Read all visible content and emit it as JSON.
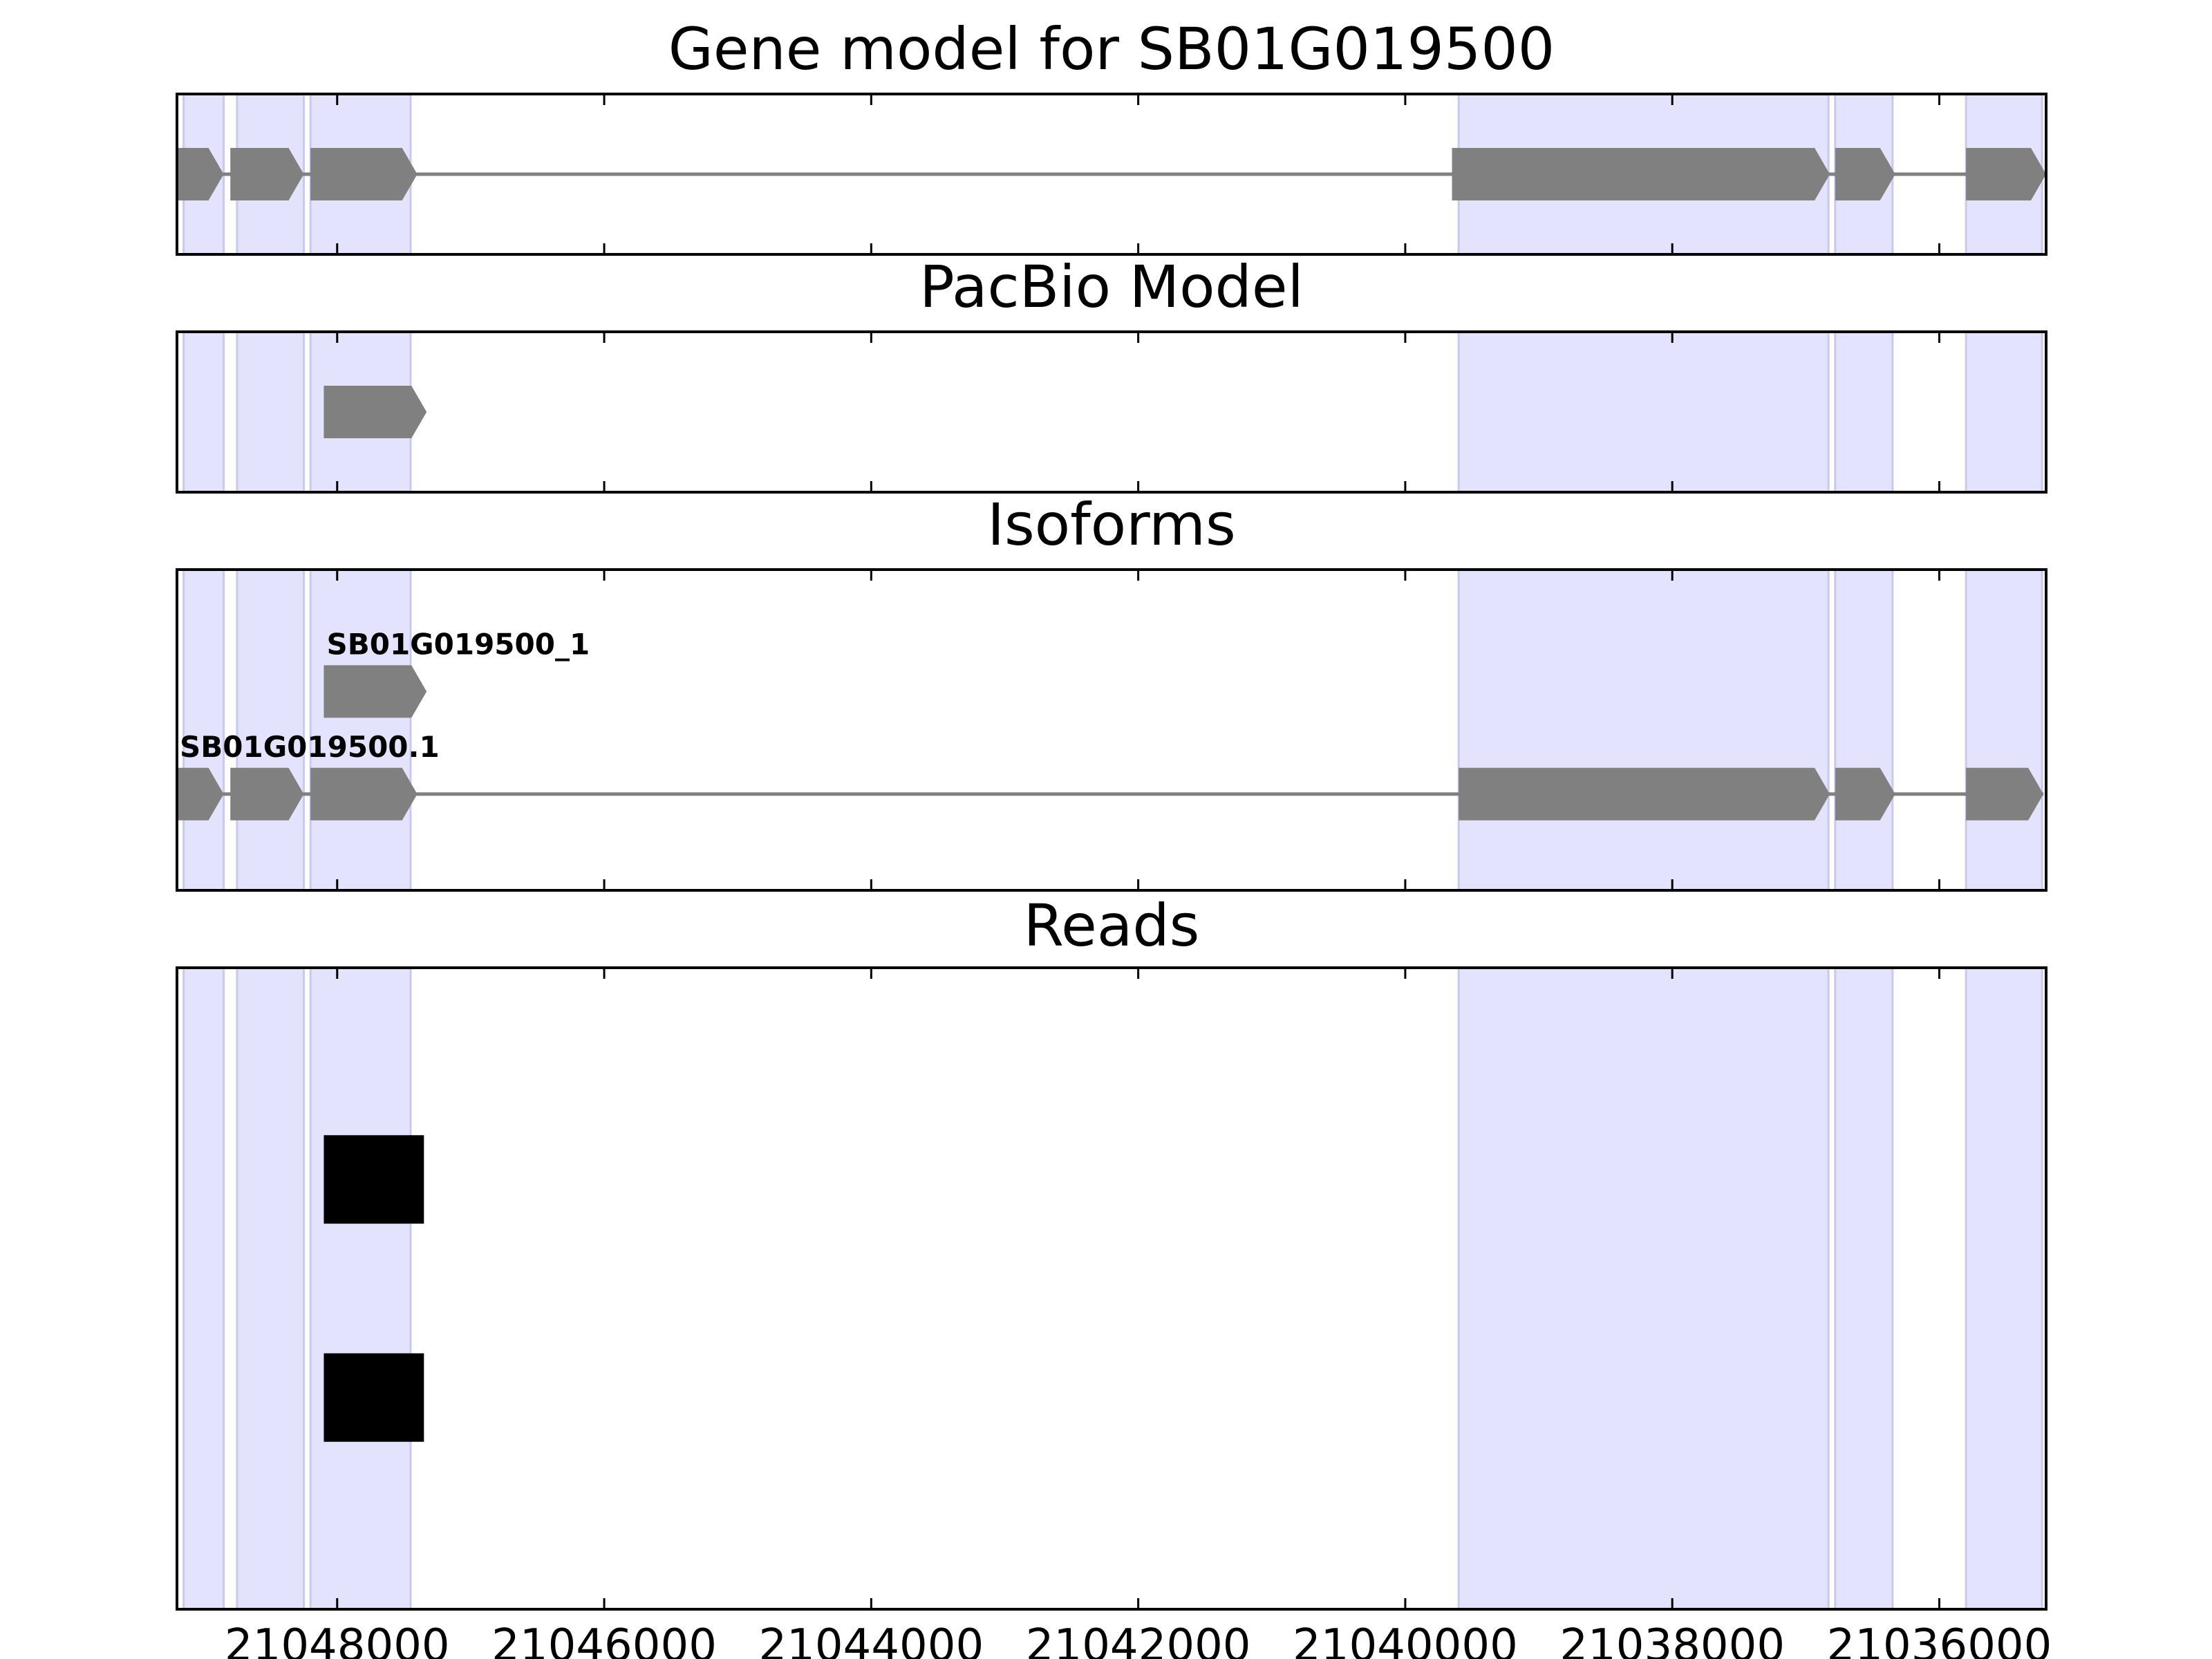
{
  "chart_data": {
    "type": "gene_model",
    "x_axis": {
      "reversed": true,
      "xlim": [
        21049200,
        21035200
      ],
      "ticks": [
        21048000,
        21046000,
        21044000,
        21042000,
        21040000,
        21038000,
        21036000
      ],
      "tick_labels": [
        "21048000",
        "21046000",
        "21044000",
        "21042000",
        "21040000",
        "21038000",
        "21036000"
      ]
    },
    "highlight_color": "#e3e3fd",
    "feature_color": "#808080",
    "read_color": "#000000",
    "exon_regions": [
      {
        "start": 21049150,
        "end": 21048850
      },
      {
        "start": 21048750,
        "end": 21048250
      },
      {
        "start": 21048200,
        "end": 21047450
      },
      {
        "start": 21039600,
        "end": 21036830
      },
      {
        "start": 21036780,
        "end": 21036350
      },
      {
        "start": 21035800,
        "end": 21035230
      }
    ],
    "panels": [
      {
        "title": "Gene model for SB01G019500",
        "tracks": [
          {
            "label": "",
            "row": 0.5,
            "exons": [
              {
                "start": 21049200,
                "end": 21048850
              },
              {
                "start": 21048800,
                "end": 21048250
              },
              {
                "start": 21048200,
                "end": 21047400
              },
              {
                "start": 21039650,
                "end": 21036820
              },
              {
                "start": 21036780,
                "end": 21036330
              },
              {
                "start": 21035800,
                "end": 21035200
              }
            ]
          }
        ]
      },
      {
        "title": "PacBio Model",
        "tracks": [
          {
            "label": "",
            "row": 0.5,
            "exons": [
              {
                "start": 21048100,
                "end": 21047330
              }
            ]
          }
        ]
      },
      {
        "title": "Isoforms",
        "tracks": [
          {
            "label": "SB01G019500_1",
            "row": 0.62,
            "exons": [
              {
                "start": 21048100,
                "end": 21047330
              }
            ]
          },
          {
            "label": "SB01G019500.1",
            "row": 0.3,
            "exons": [
              {
                "start": 21049200,
                "end": 21048850
              },
              {
                "start": 21048800,
                "end": 21048250
              },
              {
                "start": 21048200,
                "end": 21047400
              },
              {
                "start": 21039600,
                "end": 21036820
              },
              {
                "start": 21036780,
                "end": 21036330
              },
              {
                "start": 21035800,
                "end": 21035220
              }
            ]
          }
        ]
      },
      {
        "title": "Reads",
        "reads": [
          {
            "row": 0.67,
            "start": 21048100,
            "end": 21047350
          },
          {
            "row": 0.33,
            "start": 21048100,
            "end": 21047350
          }
        ]
      }
    ]
  }
}
